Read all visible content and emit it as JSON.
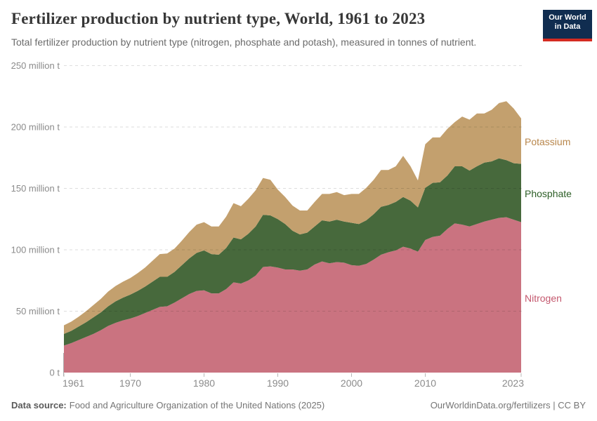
{
  "header": {
    "title": "Fertilizer production by nutrient type, World, 1961 to 2023",
    "subtitle": "Total fertilizer production by nutrient type (nitrogen, phosphate and potash), measured in tonnes of nutrient."
  },
  "logo": {
    "line1": "Our World",
    "line2": "in Data",
    "bg_color": "#102d50",
    "bar_color": "#d42b21"
  },
  "footer": {
    "source_label": "Data source:",
    "source_text": "Food and Agriculture Organization of the United Nations (2025)",
    "right_text": "OurWorldinData.org/fertilizers | CC BY"
  },
  "chart_data": {
    "type": "area",
    "stacked": true,
    "title": "Fertilizer production by nutrient type, World, 1961 to 2023",
    "unit": "million tonnes of nutrient",
    "grid": true,
    "legend_position": "right",
    "ylim": [
      0,
      250
    ],
    "yticks": [
      {
        "value": 0,
        "label": "0 t"
      },
      {
        "value": 50,
        "label": "50 million t"
      },
      {
        "value": 100,
        "label": "100 million t"
      },
      {
        "value": 150,
        "label": "150 million t"
      },
      {
        "value": 200,
        "label": "200 million t"
      },
      {
        "value": 250,
        "label": "250 million t"
      }
    ],
    "xticks": [
      1961,
      1970,
      1980,
      1990,
      2000,
      2010,
      2023
    ],
    "x": [
      1961,
      1962,
      1963,
      1964,
      1965,
      1966,
      1967,
      1968,
      1969,
      1970,
      1971,
      1972,
      1973,
      1974,
      1975,
      1976,
      1977,
      1978,
      1979,
      1980,
      1981,
      1982,
      1983,
      1984,
      1985,
      1986,
      1987,
      1988,
      1989,
      1990,
      1991,
      1992,
      1993,
      1994,
      1995,
      1996,
      1997,
      1998,
      1999,
      2000,
      2001,
      2002,
      2003,
      2004,
      2005,
      2006,
      2007,
      2008,
      2009,
      2010,
      2011,
      2012,
      2013,
      2014,
      2015,
      2016,
      2017,
      2018,
      2019,
      2020,
      2021,
      2022,
      2023
    ],
    "series": [
      {
        "name": "Nitrogen",
        "color": "#ca7380",
        "label_color": "#c4586e",
        "values": [
          22,
          24,
          26.5,
          29,
          31.5,
          34.5,
          38,
          40.5,
          42.5,
          44,
          46,
          48.5,
          51,
          53.5,
          54,
          57,
          60.5,
          64,
          66.5,
          67,
          64.5,
          64.5,
          68,
          73.5,
          72.5,
          75,
          79,
          86,
          86.5,
          85.5,
          84,
          84,
          83,
          84,
          88,
          90.5,
          89,
          90,
          89.5,
          87.5,
          87,
          88.5,
          92,
          96,
          98,
          99.5,
          102.5,
          101,
          98.5,
          108,
          110.5,
          111.5,
          117,
          121.5,
          120.5,
          119,
          121,
          123,
          124.5,
          126,
          126.5,
          124.5,
          122.5
        ]
      },
      {
        "name": "Phosphate",
        "color": "#47693c",
        "label_color": "#2c5e26",
        "values": [
          9.5,
          10,
          11,
          12,
          13.5,
          14.5,
          16,
          17.5,
          18.5,
          19.5,
          20.5,
          21.5,
          23,
          24.5,
          24,
          25,
          27,
          29,
          31,
          32.5,
          32,
          31.5,
          33.5,
          36.5,
          36,
          38,
          40,
          42.5,
          41.5,
          39.5,
          37,
          31.5,
          29.5,
          30,
          31,
          33.5,
          34,
          34.5,
          33.5,
          34.5,
          34,
          35.5,
          37,
          39,
          38.5,
          39.5,
          40.5,
          39,
          36,
          42.5,
          44,
          43.5,
          43.5,
          46.5,
          47.5,
          45.5,
          47,
          48,
          47.5,
          48.5,
          46.5,
          46,
          47.5
        ]
      },
      {
        "name": "Potassium",
        "color": "#c3a06e",
        "label_color": "#b8864b",
        "values": [
          7,
          7.5,
          8,
          9,
          10,
          11,
          12,
          12.5,
          13,
          13.5,
          14.5,
          15.5,
          17,
          18.5,
          19,
          19,
          20,
          21.5,
          23,
          23,
          22.5,
          23,
          25.5,
          28,
          27,
          28.5,
          29.5,
          30,
          29,
          24,
          22,
          20.5,
          19.5,
          18,
          20,
          21.5,
          22.5,
          22.5,
          21.5,
          23.5,
          24.5,
          26.5,
          28,
          30,
          28.5,
          29,
          33.5,
          28,
          22,
          35.5,
          37,
          36.5,
          38,
          36,
          40.5,
          41.5,
          43,
          40,
          42,
          45,
          48,
          44.5,
          37
        ]
      }
    ]
  }
}
